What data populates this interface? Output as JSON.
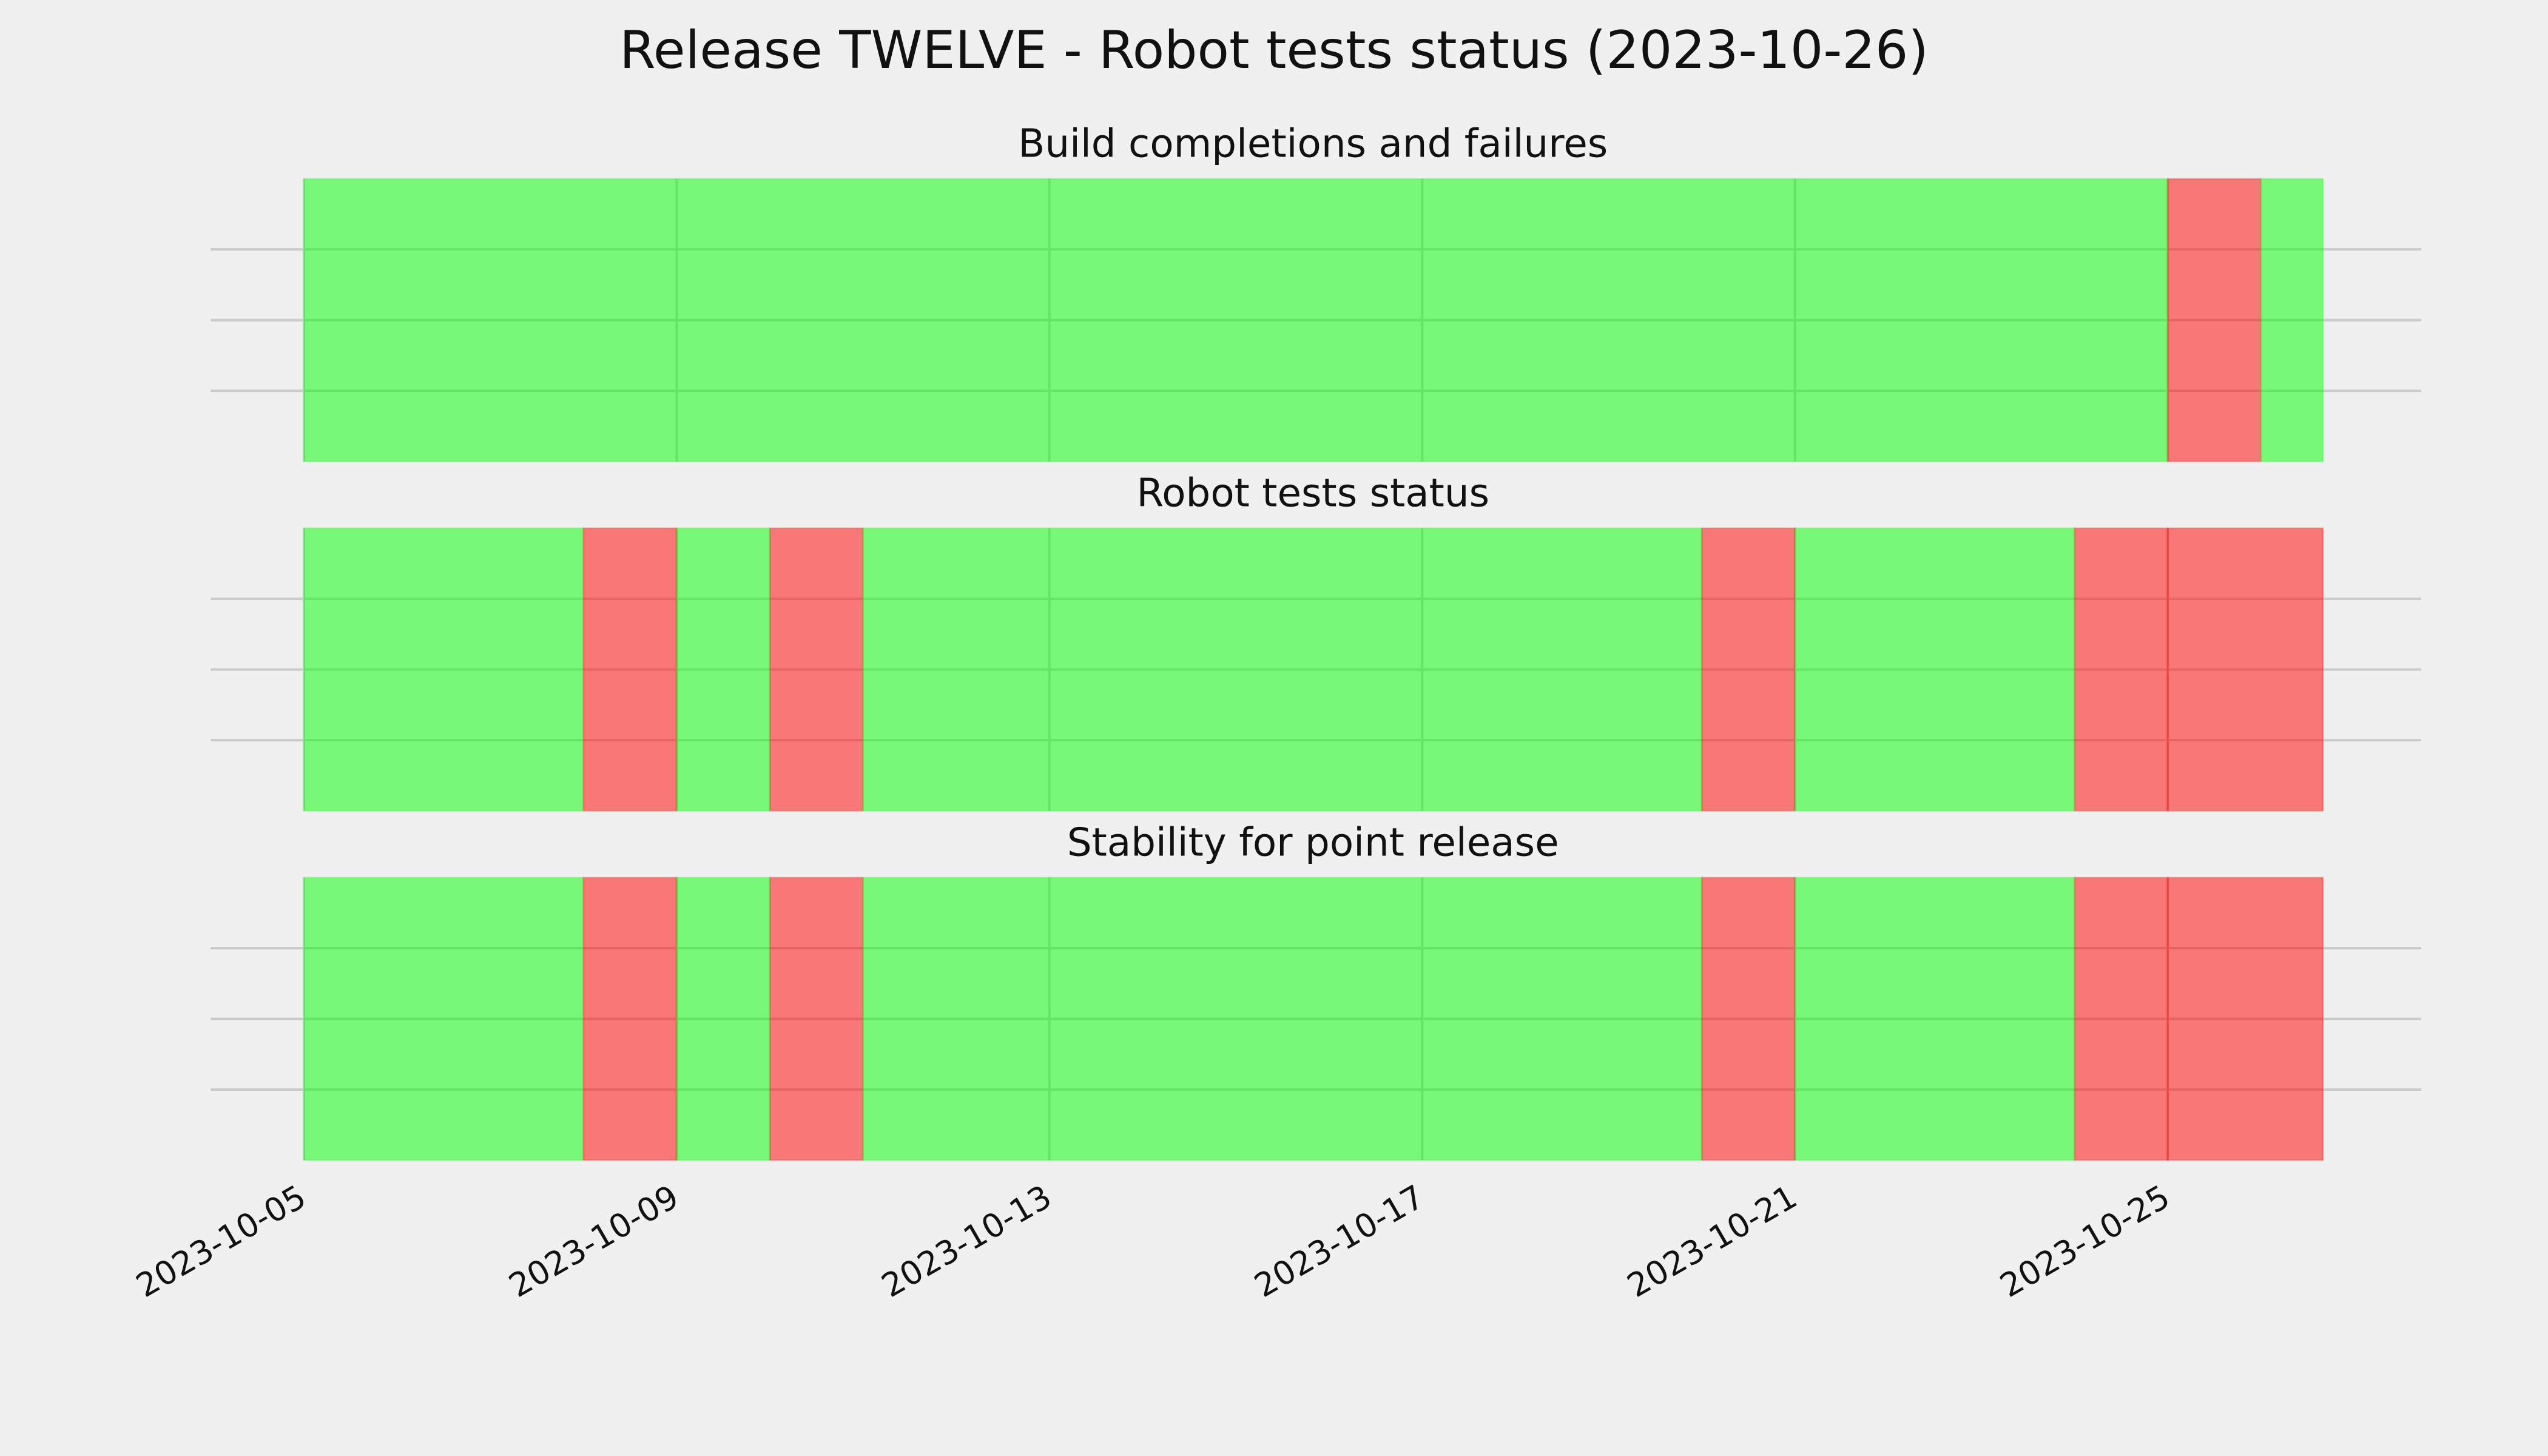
{
  "chart_data": {
    "type": "timeline",
    "title": "Release TWELVE - Robot tests status (2023-10-26)",
    "xticks": [
      "2023-10-05",
      "2023-10-09",
      "2023-10-13",
      "2023-10-17",
      "2023-10-21",
      "2023-10-25"
    ],
    "xlim": [
      "2023-10-04",
      "2023-10-28"
    ],
    "ylim": [
      0,
      1
    ],
    "yticks": [
      0.25,
      0.5,
      0.75
    ],
    "grid": true,
    "alpha": 0.5,
    "panels": [
      {
        "title": "Build completions and failures",
        "spans": [
          {
            "start": "2023-10-05",
            "end": "2023-10-25",
            "color": "#00ff00"
          },
          {
            "start": "2023-10-25",
            "end": "2023-10-26",
            "color": "#ff0000"
          },
          {
            "start": "2023-10-26",
            "end": "2023-10-26T16:00",
            "color": "#00ff00"
          }
        ]
      },
      {
        "title": "Robot tests status",
        "spans": [
          {
            "start": "2023-10-05",
            "end": "2023-10-08",
            "color": "#00ff00"
          },
          {
            "start": "2023-10-08",
            "end": "2023-10-09",
            "color": "#ff0000"
          },
          {
            "start": "2023-10-09",
            "end": "2023-10-10",
            "color": "#00ff00"
          },
          {
            "start": "2023-10-10",
            "end": "2023-10-11",
            "color": "#ff0000"
          },
          {
            "start": "2023-10-11",
            "end": "2023-10-20",
            "color": "#00ff00"
          },
          {
            "start": "2023-10-20",
            "end": "2023-10-21",
            "color": "#ff0000"
          },
          {
            "start": "2023-10-21",
            "end": "2023-10-24",
            "color": "#00ff00"
          },
          {
            "start": "2023-10-24",
            "end": "2023-10-25",
            "color": "#ff0000"
          },
          {
            "start": "2023-10-25",
            "end": "2023-10-26T16:00",
            "color": "#ff0000"
          }
        ]
      },
      {
        "title": "Stability for point release",
        "spans": [
          {
            "start": "2023-10-05",
            "end": "2023-10-08",
            "color": "#00ff00"
          },
          {
            "start": "2023-10-08",
            "end": "2023-10-09",
            "color": "#ff0000"
          },
          {
            "start": "2023-10-09",
            "end": "2023-10-10",
            "color": "#00ff00"
          },
          {
            "start": "2023-10-10",
            "end": "2023-10-11",
            "color": "#ff0000"
          },
          {
            "start": "2023-10-11",
            "end": "2023-10-20",
            "color": "#00ff00"
          },
          {
            "start": "2023-10-20",
            "end": "2023-10-21",
            "color": "#ff0000"
          },
          {
            "start": "2023-10-21",
            "end": "2023-10-24",
            "color": "#00ff00"
          },
          {
            "start": "2023-10-24",
            "end": "2023-10-25",
            "color": "#ff0000"
          },
          {
            "start": "2023-10-25",
            "end": "2023-10-26T16:00",
            "color": "#ff0000"
          }
        ]
      }
    ]
  }
}
